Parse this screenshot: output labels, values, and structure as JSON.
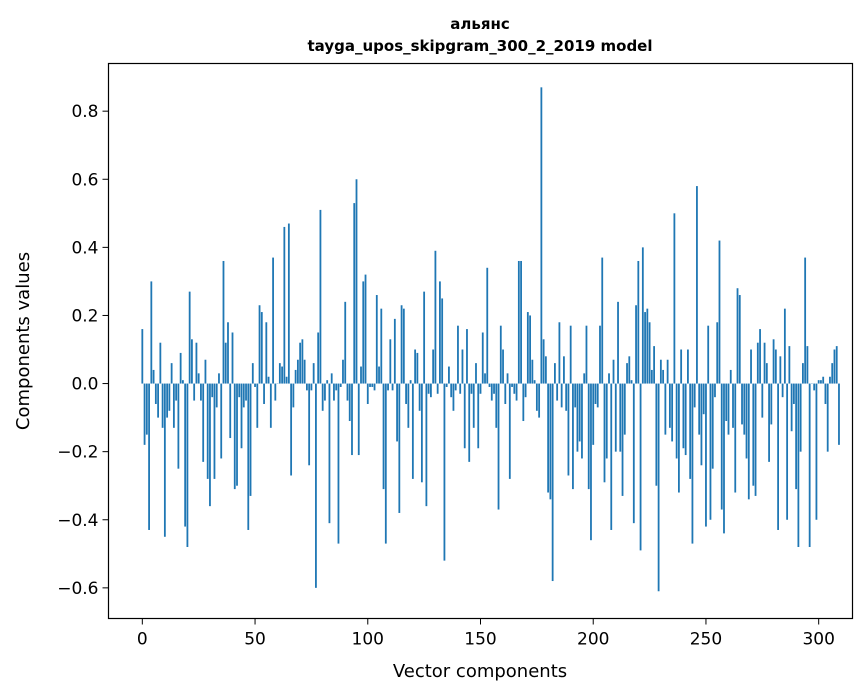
{
  "chart_data": {
    "type": "bar",
    "title": "альянс",
    "subtitle": "tayga_upos_skipgram_300_2_2019 model",
    "xlabel": "Vector components",
    "ylabel": "Components values",
    "xlim": [
      -15,
      315
    ],
    "ylim": [
      -0.69,
      0.94
    ],
    "xticks": [
      0,
      50,
      100,
      150,
      200,
      250,
      300
    ],
    "yticks": [
      -0.6,
      -0.4,
      -0.2,
      0.0,
      0.2,
      0.4,
      0.6,
      0.8
    ],
    "xtick_labels": [
      "0",
      "50",
      "100",
      "150",
      "200",
      "250",
      "300"
    ],
    "ytick_labels": [
      "−0.6",
      "−0.4",
      "−0.2",
      "0.0",
      "0.2",
      "0.4",
      "0.6",
      "0.8"
    ],
    "bar_color": "#1f77b4",
    "grid": false,
    "legend": "none",
    "values": [
      0.16,
      -0.18,
      -0.15,
      -0.43,
      0.3,
      0.04,
      -0.06,
      -0.1,
      0.12,
      -0.13,
      -0.45,
      -0.1,
      -0.08,
      0.06,
      -0.13,
      -0.05,
      -0.25,
      0.09,
      0.01,
      -0.42,
      -0.48,
      0.27,
      0.13,
      -0.05,
      0.12,
      0.03,
      -0.05,
      -0.23,
      0.07,
      -0.28,
      -0.36,
      -0.04,
      -0.28,
      -0.07,
      0.03,
      -0.22,
      0.36,
      0.12,
      0.18,
      -0.16,
      0.15,
      -0.31,
      -0.3,
      -0.04,
      -0.19,
      -0.07,
      -0.05,
      -0.43,
      -0.33,
      0.06,
      -0.01,
      -0.13,
      0.23,
      0.21,
      -0.06,
      0.18,
      0.02,
      -0.13,
      0.37,
      -0.05,
      0.0,
      0.06,
      0.05,
      0.46,
      0.02,
      0.47,
      -0.27,
      -0.07,
      0.04,
      0.07,
      0.12,
      0.13,
      0.07,
      -0.02,
      -0.24,
      -0.02,
      0.06,
      -0.6,
      0.15,
      0.51,
      -0.08,
      -0.05,
      0.01,
      -0.41,
      0.03,
      -0.05,
      -0.02,
      -0.47,
      -0.01,
      0.07,
      0.24,
      -0.05,
      -0.11,
      -0.21,
      0.53,
      0.6,
      -0.21,
      0.05,
      0.3,
      0.32,
      -0.06,
      -0.01,
      -0.01,
      -0.02,
      0.26,
      0.05,
      0.22,
      -0.31,
      -0.47,
      -0.02,
      0.13,
      -0.02,
      0.19,
      -0.17,
      -0.38,
      0.23,
      0.22,
      -0.06,
      -0.13,
      0.01,
      -0.28,
      0.1,
      0.09,
      -0.08,
      -0.29,
      0.27,
      -0.36,
      -0.03,
      -0.04,
      0.1,
      0.39,
      -0.03,
      0.3,
      0.25,
      -0.52,
      -0.01,
      0.05,
      -0.04,
      -0.08,
      -0.02,
      0.17,
      -0.03,
      0.1,
      -0.19,
      0.16,
      -0.23,
      -0.03,
      -0.13,
      0.06,
      -0.19,
      -0.03,
      0.15,
      0.03,
      0.34,
      -0.01,
      -0.05,
      -0.03,
      -0.13,
      -0.37,
      0.17,
      0.1,
      -0.06,
      0.03,
      -0.28,
      -0.01,
      -0.03,
      -0.05,
      0.36,
      0.36,
      -0.11,
      -0.04,
      0.21,
      0.2,
      0.07,
      0.01,
      -0.08,
      -0.1,
      0.87,
      0.13,
      0.08,
      -0.32,
      -0.34,
      -0.58,
      0.06,
      -0.05,
      0.18,
      -0.07,
      0.08,
      -0.08,
      -0.27,
      0.17,
      -0.31,
      -0.07,
      -0.2,
      -0.17,
      -0.22,
      0.03,
      0.17,
      -0.31,
      -0.46,
      -0.18,
      -0.06,
      -0.07,
      0.17,
      0.37,
      -0.29,
      -0.22,
      0.03,
      -0.43,
      0.07,
      -0.2,
      0.24,
      -0.2,
      -0.33,
      -0.15,
      0.06,
      0.08,
      0.01,
      -0.41,
      0.23,
      0.36,
      -0.49,
      0.4,
      0.21,
      0.22,
      0.18,
      0.04,
      0.11,
      -0.3,
      -0.61,
      0.07,
      0.04,
      -0.15,
      0.07,
      -0.13,
      -0.17,
      0.5,
      -0.22,
      -0.32,
      0.1,
      -0.19,
      -0.21,
      0.1,
      -0.28,
      -0.47,
      -0.07,
      0.58,
      -0.15,
      -0.24,
      -0.09,
      -0.42,
      0.17,
      -0.4,
      -0.25,
      -0.04,
      0.18,
      0.42,
      -0.37,
      -0.44,
      -0.11,
      -0.15,
      0.04,
      -0.13,
      -0.32,
      0.28,
      0.26,
      -0.12,
      -0.15,
      -0.22,
      -0.34,
      0.1,
      -0.3,
      -0.33,
      0.12,
      0.16,
      -0.1,
      0.12,
      0.06,
      -0.23,
      -0.12,
      0.13,
      0.1,
      -0.43,
      0.08,
      -0.04,
      0.22,
      -0.4,
      0.11,
      -0.14,
      -0.06,
      -0.31,
      -0.48,
      -0.2,
      0.06,
      0.37,
      0.11,
      -0.48,
      0.0,
      -0.02,
      -0.4,
      0.01,
      0.01,
      0.02,
      -0.06,
      -0.2,
      0.02,
      0.06,
      0.1,
      0.11,
      -0.18
    ]
  }
}
